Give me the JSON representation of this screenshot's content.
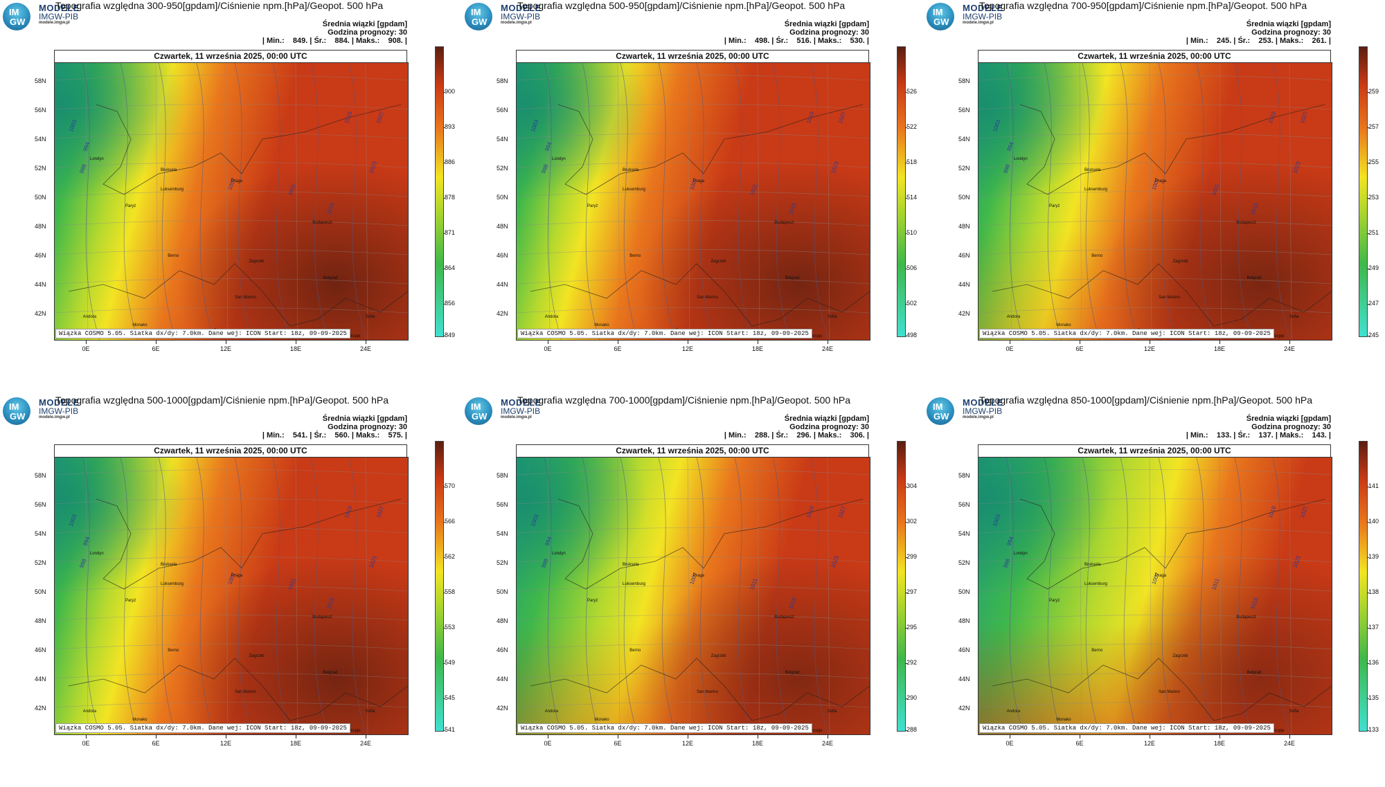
{
  "logo": {
    "text_im": "IM",
    "text_gw": "GW",
    "brand_line1": "MODELE",
    "brand_line2": "IMGW-PIB",
    "brand_line3": "modele.imgw.pl"
  },
  "common": {
    "subtitle1": "Średnia wiązki [gpdam]",
    "subtitle2": "Godzina prognozy: 30",
    "map_title": "Czwartek, 11 września 2025, 00:00 UTC",
    "footnote": "Wiązka COSMO 5.05. Siatka dx/dy: 7.0km. Dane wej: ICON Start: 18z, 09-09-2025",
    "lat_labels": [
      "58N",
      "56N",
      "54N",
      "52N",
      "50N",
      "48N",
      "46N",
      "44N",
      "42N"
    ],
    "lon_labels": [
      "0E",
      "6E",
      "12E",
      "18E",
      "24E"
    ],
    "colors": {
      "low": "#40e0d0",
      "mid_green": "#3fb84a",
      "yellow": "#f2e423",
      "orange": "#e9761d",
      "red": "#c93a16",
      "dark": "#5a1e10"
    }
  },
  "panels": [
    {
      "title": "Topografia względna 300-950[gpdam]/Ciśnienie npm.[hPa]/Geopot. 500 hPa",
      "stats": "| Min.:    849. | Śr.:    884. | Maks.:    908. |",
      "colorbar_ticks": [
        "900",
        "893",
        "886",
        "878",
        "871",
        "864",
        "856",
        "849"
      ]
    },
    {
      "title": "Topografia względna 500-950[gpdam]/Ciśnienie npm.[hPa]/Geopot. 500 hPa",
      "stats": "| Min.:    498. | Śr.:    516. | Maks.:    530. |",
      "colorbar_ticks": [
        "526",
        "522",
        "518",
        "514",
        "510",
        "506",
        "502",
        "498"
      ]
    },
    {
      "title": "Topografia względna 700-950[gpdam]/Ciśnienie npm.[hPa]/Geopot. 500 hPa",
      "stats": "| Min.:    245. | Śr.:    253. | Maks.:    261. |",
      "colorbar_ticks": [
        "259",
        "257",
        "255",
        "253",
        "251",
        "249",
        "247",
        "245"
      ]
    },
    {
      "title": "Topografia względna 500-1000[gpdam]/Ciśnienie npm.[hPa]/Geopot. 500 hPa",
      "stats": "| Min.:    541. | Śr.:    560. | Maks.:    575. |",
      "colorbar_ticks": [
        "570",
        "566",
        "562",
        "558",
        "553",
        "549",
        "545",
        "541"
      ]
    },
    {
      "title": "Topografia względna 700-1000[gpdam]/Ciśnienie npm.[hPa]/Geopot. 500 hPa",
      "stats": "| Min.:    288. | Śr.:    296. | Maks.:    306. |",
      "colorbar_ticks": [
        "304",
        "302",
        "299",
        "297",
        "295",
        "292",
        "290",
        "288"
      ]
    },
    {
      "title": "Topografia względna 850-1000[gpdam]/Ciśnienie npm.[hPa]/Geopot. 500 hPa",
      "stats": "| Min.:    133. | Śr.:    137. | Maks.:    143. |",
      "colorbar_ticks": [
        "141",
        "140",
        "139",
        "138",
        "137",
        "136",
        "135",
        "133"
      ]
    }
  ],
  "map_labels": {
    "cities": [
      "Londyn",
      "Bruksela",
      "Paryż",
      "Luksemburg",
      "Praga",
      "Berno",
      "Zagrzeb",
      "Budapeszt",
      "Belgrad",
      "San Marino",
      "Monako",
      "Andora",
      "Rzym",
      "Sofia",
      "Skopje"
    ],
    "isobars": [
      "1003",
      "1007",
      "1011",
      "1015",
      "1019",
      "1023",
      "1027",
      "998",
      "994"
    ]
  }
}
